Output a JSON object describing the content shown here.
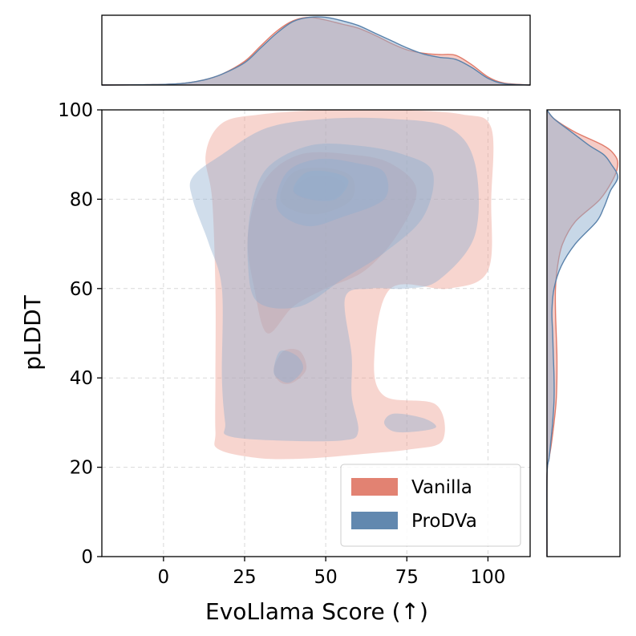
{
  "chart_data": {
    "type": "kde-joint",
    "xlabel": "EvoLlama Score (↑)",
    "ylabel": "pLDDT",
    "xlim": [
      -19,
      113
    ],
    "ylim": [
      0,
      100
    ],
    "xticks": [
      0,
      25,
      50,
      75,
      100
    ],
    "yticks": [
      0,
      20,
      40,
      60,
      80,
      100
    ],
    "grid": true,
    "legend_position": "lower-right",
    "series": [
      {
        "name": "Vanilla",
        "color": "#e07b6a",
        "fill": "#eb9a8d",
        "contours": [
          [
            [
              17,
              24
            ],
            [
              30,
              22
            ],
            [
              45,
              22
            ],
            [
              62,
              23
            ],
            [
              76,
              24
            ],
            [
              86,
              26
            ],
            [
              84,
              34
            ],
            [
              68,
              36
            ],
            [
              65,
              45
            ],
            [
              70,
              60
            ],
            [
              88,
              60
            ],
            [
              100,
              64
            ],
            [
              101,
              80
            ],
            [
              101,
              96
            ],
            [
              92,
              99
            ],
            [
              72,
              100
            ],
            [
              50,
              100
            ],
            [
              30,
              99
            ],
            [
              18,
              97
            ],
            [
              13,
              90
            ],
            [
              15,
              80
            ],
            [
              16,
              60
            ],
            [
              16,
              40
            ],
            [
              16,
              28
            ]
          ],
          [
            [
              32,
              50
            ],
            [
              28,
              60
            ],
            [
              26,
              72
            ],
            [
              31,
              84
            ],
            [
              42,
              90
            ],
            [
              58,
              90
            ],
            [
              70,
              88
            ],
            [
              78,
              82
            ],
            [
              72,
              72
            ],
            [
              62,
              64
            ],
            [
              50,
              60
            ],
            [
              40,
              56
            ]
          ],
          [
            [
              36,
              80
            ],
            [
              40,
              86
            ],
            [
              50,
              87
            ],
            [
              58,
              85
            ],
            [
              58,
              80
            ],
            [
              50,
              77
            ],
            [
              42,
              77
            ]
          ],
          [
            [
              40,
              82
            ],
            [
              45,
              85
            ],
            [
              52,
              85
            ],
            [
              56,
              83
            ],
            [
              52,
              80
            ],
            [
              44,
              80
            ]
          ],
          [
            [
              34,
              42
            ],
            [
              37,
              46
            ],
            [
              42,
              46
            ],
            [
              44,
              42
            ],
            [
              40,
              39
            ],
            [
              36,
              39
            ]
          ]
        ],
        "x_marginal": {
          "x": [
            -19,
            -5,
            5,
            12,
            18,
            25,
            30,
            35,
            40,
            45,
            50,
            55,
            60,
            65,
            70,
            75,
            80,
            85,
            90,
            95,
            100,
            105,
            113
          ],
          "density": [
            0,
            0.5,
            2,
            7,
            16,
            35,
            58,
            80,
            95,
            100,
            96,
            90,
            84,
            74,
            62,
            52,
            47,
            45,
            44,
            30,
            12,
            3,
            0
          ]
        },
        "y_marginal": {
          "y": [
            0,
            18,
            22,
            25,
            30,
            35,
            40,
            45,
            50,
            55,
            60,
            65,
            70,
            75,
            80,
            85,
            88,
            90,
            92,
            95,
            98,
            100
          ],
          "density": [
            0,
            0,
            3,
            6,
            10,
            13,
            14,
            14,
            13,
            12,
            12,
            15,
            22,
            40,
            75,
            95,
            100,
            95,
            80,
            40,
            10,
            0
          ]
        }
      },
      {
        "name": "ProDVa",
        "color": "#5a82ab",
        "fill": "#8fafcf",
        "contours": [
          [
            [
              20,
              27
            ],
            [
              35,
              26
            ],
            [
              55,
              26
            ],
            [
              60,
              28
            ],
            [
              58,
              36
            ],
            [
              58,
              45
            ],
            [
              56,
              58
            ],
            [
              64,
              60
            ],
            [
              75,
              60
            ],
            [
              85,
              62
            ],
            [
              96,
              72
            ],
            [
              96,
              88
            ],
            [
              88,
              96
            ],
            [
              70,
              98
            ],
            [
              50,
              98
            ],
            [
              32,
              96
            ],
            [
              18,
              90
            ],
            [
              9,
              85
            ],
            [
              9,
              80
            ],
            [
              14,
              70
            ],
            [
              18,
              60
            ],
            [
              18,
              40
            ],
            [
              19,
              30
            ]
          ],
          [
            [
              29,
              57
            ],
            [
              26,
              66
            ],
            [
              27,
              78
            ],
            [
              32,
              87
            ],
            [
              45,
              92
            ],
            [
              60,
              92
            ],
            [
              74,
              90
            ],
            [
              83,
              86
            ],
            [
              80,
              76
            ],
            [
              68,
              68
            ],
            [
              55,
              62
            ],
            [
              42,
              56
            ]
          ],
          [
            [
              35,
              78
            ],
            [
              38,
              86
            ],
            [
              48,
              89
            ],
            [
              60,
              88
            ],
            [
              68,
              86
            ],
            [
              68,
              80
            ],
            [
              55,
              76
            ],
            [
              44,
              74
            ]
          ],
          [
            [
              40,
              82
            ],
            [
              44,
              86
            ],
            [
              52,
              86
            ],
            [
              57,
              84
            ],
            [
              53,
              80
            ],
            [
              45,
              80
            ]
          ],
          [
            [
              34,
              42
            ],
            [
              36,
              46
            ],
            [
              41,
              45
            ],
            [
              43,
              42
            ],
            [
              39,
              39
            ],
            [
              35,
              40
            ]
          ],
          [
            [
              68,
              30
            ],
            [
              71,
              32
            ],
            [
              80,
              31
            ],
            [
              84,
              29
            ],
            [
              78,
              28
            ],
            [
              71,
              28
            ]
          ]
        ],
        "x_marginal": {
          "x": [
            -19,
            -5,
            5,
            12,
            18,
            25,
            30,
            35,
            40,
            45,
            50,
            55,
            60,
            65,
            70,
            75,
            80,
            85,
            90,
            95,
            100,
            105,
            113
          ],
          "density": [
            0,
            0.5,
            2,
            7,
            16,
            33,
            55,
            77,
            94,
            100,
            100,
            95,
            88,
            77,
            66,
            55,
            46,
            41,
            38,
            26,
            10,
            2,
            0
          ]
        },
        "y_marginal": {
          "y": [
            0,
            18,
            22,
            25,
            30,
            35,
            40,
            45,
            50,
            55,
            60,
            65,
            70,
            75,
            78,
            80,
            82,
            85,
            88,
            90,
            92,
            95,
            98,
            100
          ],
          "density": [
            0,
            0,
            3,
            5,
            8,
            10,
            10,
            9,
            8,
            7,
            10,
            20,
            40,
            70,
            80,
            85,
            90,
            100,
            90,
            80,
            60,
            35,
            10,
            0
          ]
        }
      }
    ]
  }
}
